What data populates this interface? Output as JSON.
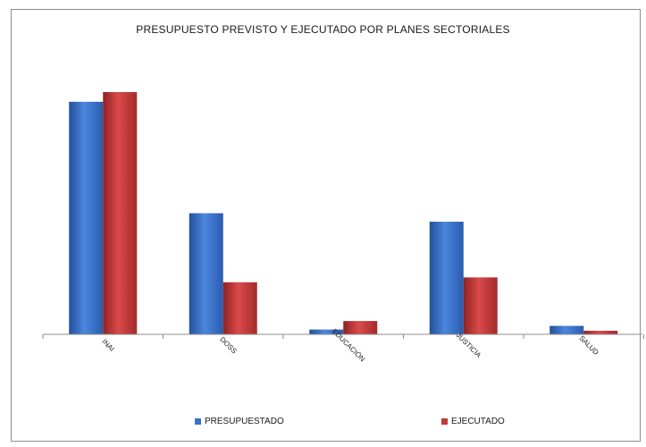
{
  "chart_data": {
    "type": "bar",
    "title": "PRESUPUESTO PREVISTO Y EJECUTADO POR PLANES SECTORIALES",
    "categories": [
      "INAI",
      "DOSS",
      "EDUCACIÓN",
      "JUSTICIA",
      "SALUD"
    ],
    "series": [
      {
        "name": "PRESUPUESTADO",
        "color": "#3a6fc4",
        "values": [
          96,
          50,
          2,
          46.5,
          3.5
        ]
      },
      {
        "name": "EJECUTADO",
        "color": "#c0393a",
        "values": [
          100,
          21.5,
          5.5,
          23.5,
          1.5
        ]
      }
    ],
    "ylim": [
      0,
      100
    ],
    "grid": false,
    "legend": "bottom"
  }
}
